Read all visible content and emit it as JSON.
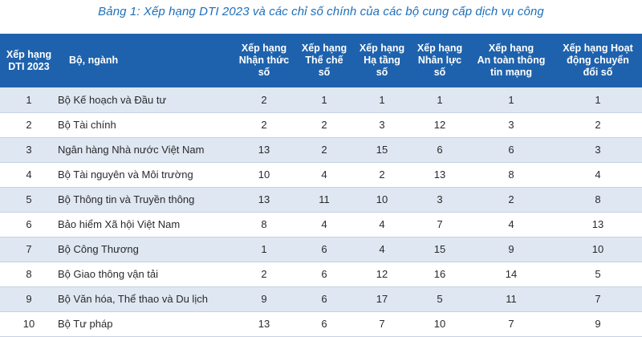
{
  "caption": "Bảng 1: Xếp hạng DTI 2023 và các chỉ số chính của các bộ cung cấp dịch vụ công",
  "colors": {
    "header_bg": "#1e62ad",
    "caption_text": "#1e6fb8",
    "stripe": "#dfe7f2"
  },
  "table": {
    "headers": [
      "Xếp hạng\nDTI 2023",
      "Bộ, ngành",
      "Xếp hạng\nNhận thức\nsố",
      "Xếp hạng\nThể chế\nsố",
      "Xếp hạng\nHạ tầng\nsố",
      "Xếp hạng\nNhân lực\nsố",
      "Xếp hạng\nAn toàn thông\ntin mạng",
      "Xếp hạng Hoạt\nđộng chuyển\nđổi số"
    ],
    "rows": [
      [
        "1",
        "Bộ Kế hoạch và Đầu tư",
        "2",
        "1",
        "1",
        "1",
        "1",
        "1"
      ],
      [
        "2",
        "Bộ Tài chính",
        "2",
        "2",
        "3",
        "12",
        "3",
        "2"
      ],
      [
        "3",
        "Ngân hàng Nhà nước Việt Nam",
        "13",
        "2",
        "15",
        "6",
        "6",
        "3"
      ],
      [
        "4",
        "Bộ Tài nguyên và Môi trường",
        "10",
        "4",
        "2",
        "13",
        "8",
        "4"
      ],
      [
        "5",
        "Bộ Thông tin và Truyền thông",
        "13",
        "11",
        "10",
        "3",
        "2",
        "8"
      ],
      [
        "6",
        "Bảo hiểm Xã hội Việt Nam",
        "8",
        "4",
        "4",
        "7",
        "4",
        "13"
      ],
      [
        "7",
        "Bộ Công Thương",
        "1",
        "6",
        "4",
        "15",
        "9",
        "10"
      ],
      [
        "8",
        "Bộ Giao thông vận tải",
        "2",
        "6",
        "12",
        "16",
        "14",
        "5"
      ],
      [
        "9",
        "Bộ Văn hóa, Thể thao và Du lịch",
        "9",
        "6",
        "17",
        "5",
        "11",
        "7"
      ],
      [
        "10",
        "Bộ Tư pháp",
        "13",
        "6",
        "7",
        "10",
        "7",
        "9"
      ]
    ]
  }
}
